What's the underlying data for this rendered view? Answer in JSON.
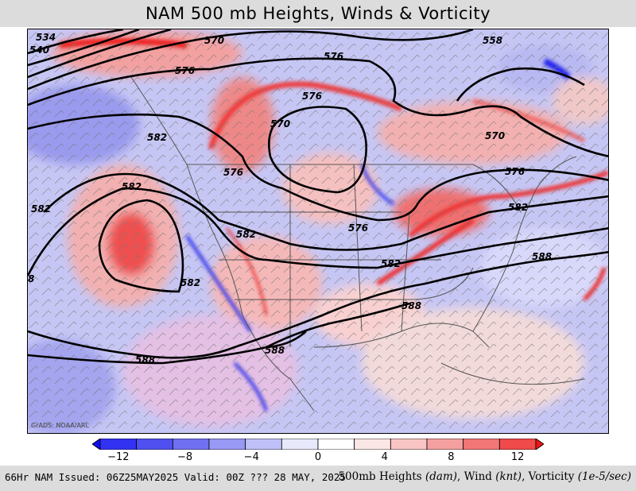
{
  "title": "NAM 500 mb Heights, Winds & Vorticity",
  "credit": "GrADS: NOAA/ARL",
  "colorbar": {
    "colors": [
      "#1010f0",
      "#3232f2",
      "#5050f0",
      "#7070f2",
      "#9898f5",
      "#c0c0f8",
      "#e8e8fb",
      "#ffffff",
      "#fbe6e6",
      "#f8c4c4",
      "#f5a0a0",
      "#f27676",
      "#f04a4a",
      "#f01414"
    ],
    "tick_labels": [
      "−12",
      "−8",
      "−4",
      "0",
      "4",
      "8",
      "12"
    ],
    "tick_values": [
      -12,
      -8,
      -4,
      0,
      4,
      8,
      12
    ],
    "range": [
      -14,
      14
    ]
  },
  "contours": [
    {
      "value": "534"
    },
    {
      "value": "540"
    },
    {
      "value": "570"
    },
    {
      "value": "576"
    },
    {
      "value": "576"
    },
    {
      "value": "576"
    },
    {
      "value": "558"
    },
    {
      "value": "570"
    },
    {
      "value": "570"
    },
    {
      "value": "582"
    },
    {
      "value": "582"
    },
    {
      "value": "576"
    },
    {
      "value": "582"
    },
    {
      "value": "576"
    },
    {
      "value": "576"
    },
    {
      "value": "582"
    },
    {
      "value": "582"
    },
    {
      "value": "582"
    },
    {
      "value": "588"
    },
    {
      "value": "582"
    },
    {
      "value": "588"
    },
    {
      "value": "588"
    },
    {
      "value": "588"
    },
    {
      "value": "8"
    }
  ],
  "footer": {
    "left": "66Hr NAM Issued: 06Z25MAY2025 Valid: 00Z ??? 28 MAY, 2025",
    "right_a": "500mb Heights ",
    "right_a_unit": "(dam)",
    "right_b": ", Wind ",
    "right_b_unit": "(knt)",
    "right_c": ", Vorticity ",
    "right_c_unit": "(1e-5/sec)"
  }
}
